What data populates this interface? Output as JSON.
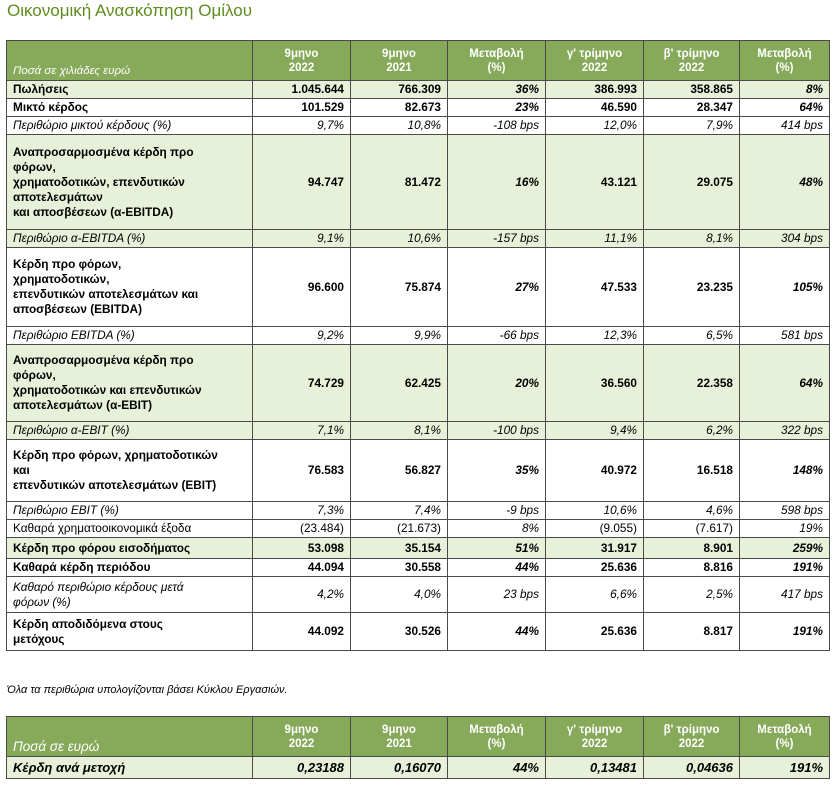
{
  "title": "Οικονομική Ανασκόπηση Ομίλου",
  "table1": {
    "header": {
      "label": "Ποσά σε χιλιάδες ευρώ",
      "cols": [
        [
          "9μηνο",
          "2022"
        ],
        [
          "9μηνο",
          "2021"
        ],
        [
          "Μεταβολή",
          "(%)"
        ],
        [
          "γ' τρίμηνο",
          "2022"
        ],
        [
          "β' τρίμηνο",
          "2022"
        ],
        [
          "Μεταβολή",
          "(%)"
        ]
      ]
    },
    "rows": [
      {
        "label": [
          "Πωλήσεις"
        ],
        "values": [
          "1.045.644",
          "766.309",
          "36%",
          "386.993",
          "358.865",
          "8%"
        ]
      },
      {
        "label": [
          "Μικτό κέρδος"
        ],
        "values": [
          "101.529",
          "82.673",
          "23%",
          "46.590",
          "28.347",
          "64%"
        ]
      },
      {
        "label": [
          "Περιθώριο μικτού κέρδους (%)"
        ],
        "values": [
          "9,7%",
          "10,8%",
          "-108 bps",
          "12,0%",
          "7,9%",
          "414 bps"
        ]
      },
      {
        "label": [
          "Αναπροσαρμοσμένα κέρδη προ",
          "φόρων,",
          "χρηματοδοτικών, επενδυτικών",
          "αποτελεσμάτων",
          "και αποσβέσεων (α-EBITDA)"
        ],
        "values": [
          "94.747",
          "81.472",
          "16%",
          "43.121",
          "29.075",
          "48%"
        ]
      },
      {
        "label": [
          "Περιθώριο α-EBITDA (%)"
        ],
        "values": [
          "9,1%",
          "10,6%",
          "-157 bps",
          "11,1%",
          "8,1%",
          "304 bps"
        ]
      },
      {
        "label": [
          "Κέρδη προ φόρων,",
          "χρηματοδοτικών,",
          "επενδυτικών αποτελεσμάτων και",
          "αποσβέσεων (EBITDA)"
        ],
        "values": [
          "96.600",
          "75.874",
          "27%",
          "47.533",
          "23.235",
          "105%"
        ]
      },
      {
        "label": [
          "Περιθώριο EBITDA (%)"
        ],
        "values": [
          "9,2%",
          "9,9%",
          "-66 bps",
          "12,3%",
          "6,5%",
          "581 bps"
        ]
      },
      {
        "label": [
          "Αναπροσαρμοσμένα κέρδη προ",
          "φόρων,",
          "χρηματοδοτικών και επενδυτικών",
          "αποτελεσμάτων (α-EBIT)"
        ],
        "values": [
          "74.729",
          "62.425",
          "20%",
          "36.560",
          "22.358",
          "64%"
        ]
      },
      {
        "label": [
          "Περιθώριο α-EBIT (%)"
        ],
        "values": [
          "7,1%",
          "8,1%",
          "-100 bps",
          "9,4%",
          "6,2%",
          "322 bps"
        ]
      },
      {
        "label": [
          "Κέρδη προ φόρων, χρηματοδοτικών",
          "και",
          "επενδυτικών αποτελεσμάτων (EBIT)"
        ],
        "values": [
          "76.583",
          "56.827",
          "35%",
          "40.972",
          "16.518",
          "148%"
        ]
      },
      {
        "label": [
          "Περιθώριο EBIT (%)"
        ],
        "values": [
          "7,3%",
          "7,4%",
          "-9 bps",
          "10,6%",
          "4,6%",
          "598 bps"
        ]
      },
      {
        "label": [
          "Καθαρά χρηματοοικονομικά έξοδα"
        ],
        "values": [
          "(23.484)",
          "(21.673)",
          "8%",
          "(9.055)",
          "(7.617)",
          "19%"
        ]
      },
      {
        "label": [
          "Κέρδη προ φόρου εισοδήματος"
        ],
        "values": [
          "53.098",
          "35.154",
          "51%",
          "31.917",
          "8.901",
          "259%"
        ]
      },
      {
        "label": [
          "Καθαρά κέρδη περιόδου"
        ],
        "values": [
          "44.094",
          "30.558",
          "44%",
          "25.636",
          "8.816",
          "191%"
        ]
      },
      {
        "label": [
          "Καθαρό περιθώριο κέρδους μετά",
          "φόρων (%)"
        ],
        "values": [
          "4,2%",
          "4,0%",
          "23 bps",
          "6,6%",
          "2,5%",
          "417 bps"
        ]
      },
      {
        "label": [
          "Κέρδη αποδιδόμενα στους",
          "μετόχους"
        ],
        "values": [
          "44.092",
          "30.526",
          "44%",
          "25.636",
          "8.817",
          "191%"
        ]
      }
    ]
  },
  "note": "Όλα τα περιθώρια υπολογίζονται βάσει Κύκλου Εργασιών.",
  "table2": {
    "header": {
      "label": "Ποσά σε ευρώ",
      "cols": [
        [
          "9μηνο",
          "2022"
        ],
        [
          "9μηνο",
          "2021"
        ],
        [
          "Μεταβολή",
          "(%)"
        ],
        [
          "γ' τρίμηνο",
          "2022"
        ],
        [
          "β' τρίμηνο",
          "2022"
        ],
        [
          "Μεταβολή",
          "(%)"
        ]
      ]
    },
    "rows": [
      {
        "label": [
          "Κέρδη ανά μετοχή"
        ],
        "values": [
          "0,23188",
          "0,16070",
          "44%",
          "0,13481",
          "0,04636",
          "191%"
        ]
      }
    ]
  }
}
